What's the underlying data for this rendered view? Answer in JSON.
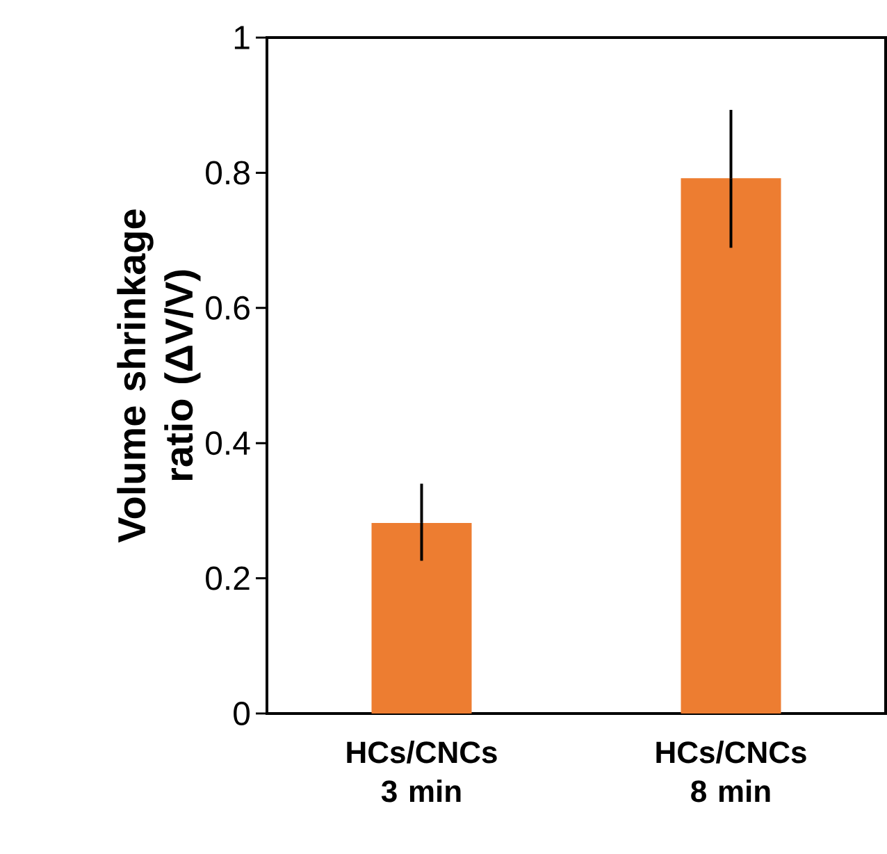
{
  "chart_data": {
    "type": "bar",
    "ylabel": "Volume shrinkage ratio (ΔV/V)",
    "categories": [
      "HCs/CNCs 3 min",
      "HCs/CNCs 8 min"
    ],
    "values": [
      0.282,
      0.792
    ],
    "color": "#ed7d31",
    "errors": [
      [
        0.226,
        0.34
      ],
      [
        0.689,
        0.893
      ]
    ],
    "ylim": [
      0,
      1
    ],
    "yticks": [
      0,
      0.2,
      0.4,
      0.6,
      0.8,
      1
    ]
  }
}
